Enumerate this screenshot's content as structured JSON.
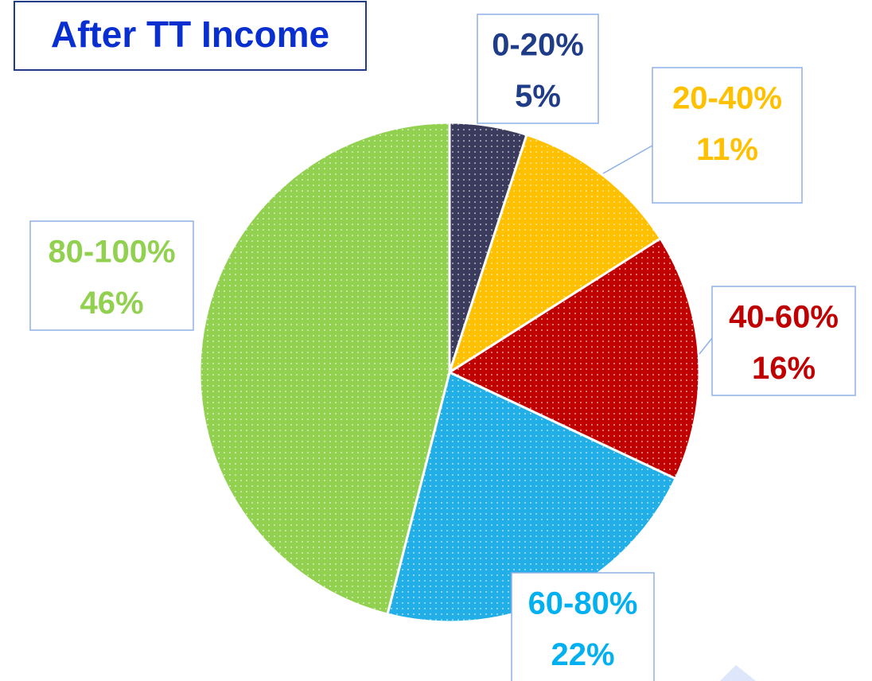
{
  "chart_data": {
    "type": "pie",
    "title": "After TT Income",
    "categories": [
      "0-20%",
      "20-40%",
      "40-60%",
      "60-80%",
      "80-100%"
    ],
    "values": [
      5,
      11,
      16,
      22,
      46
    ],
    "value_labels": [
      "5%",
      "11%",
      "16%",
      "22%",
      "46%"
    ],
    "colors": [
      "#3b3b5e",
      "#ffc000",
      "#c00000",
      "#22aee6",
      "#92d050"
    ],
    "label_colors": [
      "#1f3c88",
      "#ffc000",
      "#c00000",
      "#00b0f0",
      "#92d050"
    ]
  }
}
